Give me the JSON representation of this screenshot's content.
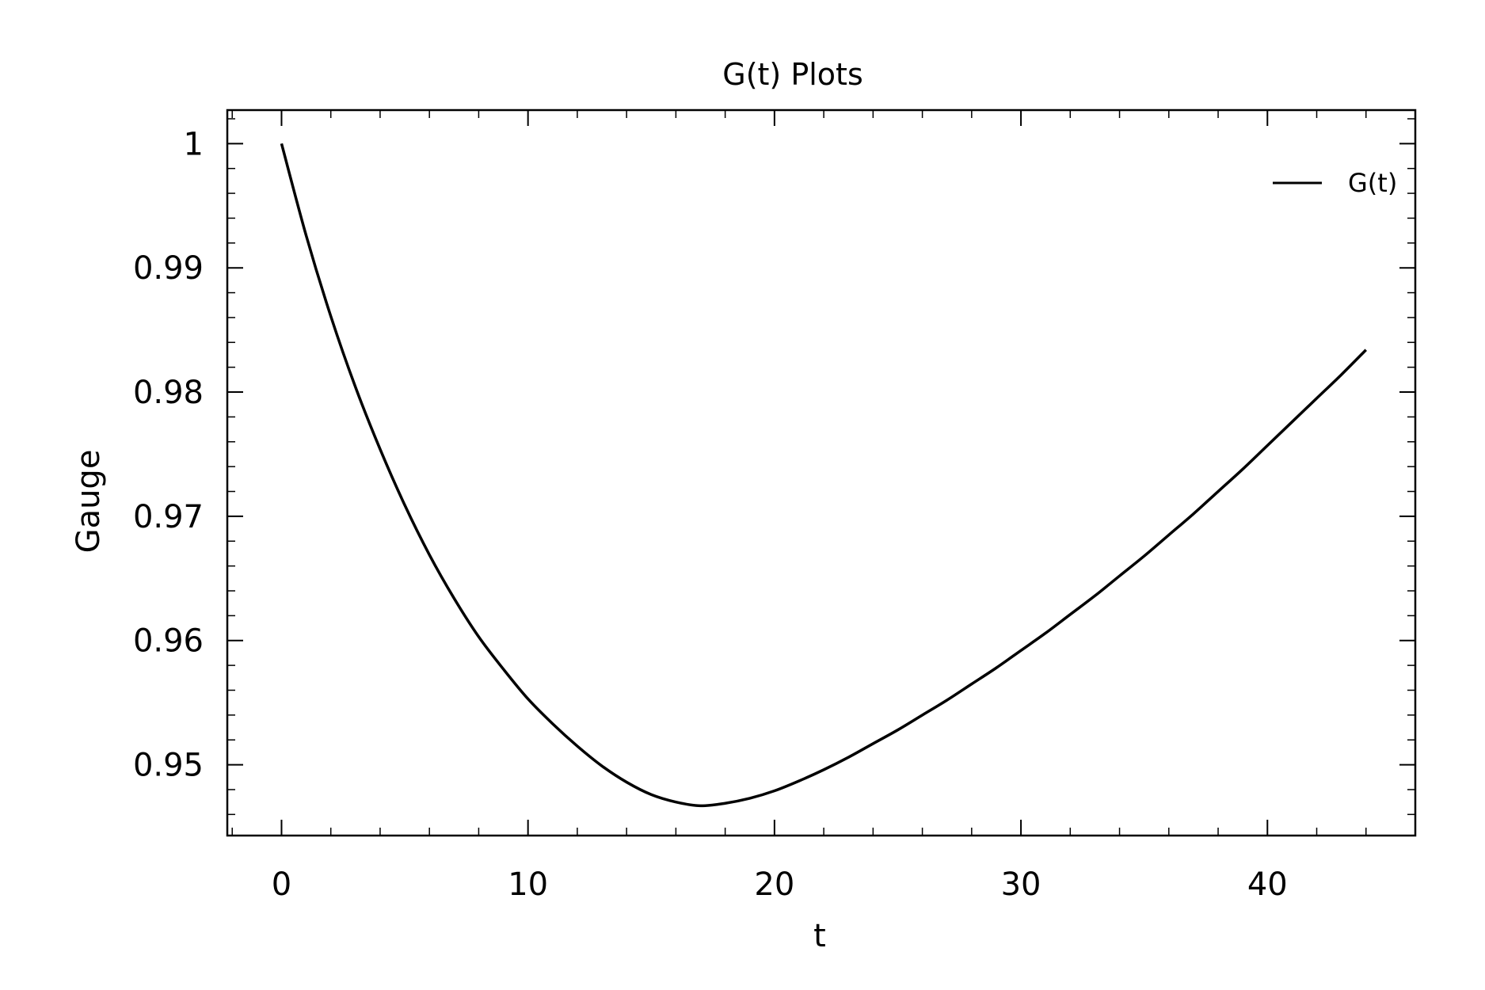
{
  "chart_data": {
    "type": "line",
    "title": "G(t) Plots",
    "xlabel": "t",
    "ylabel": "Gauge",
    "xlim": [
      -2.2,
      46.0
    ],
    "ylim": [
      0.9443,
      1.0027
    ],
    "xticks": [
      0,
      10,
      20,
      30,
      40
    ],
    "xtick_labels": [
      "0",
      "10",
      "20",
      "30",
      "40"
    ],
    "yticks": [
      0.95,
      0.96,
      0.97,
      0.98,
      0.99,
      1.0
    ],
    "ytick_labels": [
      "0.95",
      "0.96",
      "0.97",
      "0.98",
      "0.99",
      "1"
    ],
    "x_minor_step": 2,
    "y_minor_step": 0.002,
    "grid": false,
    "legend_position": "top-right",
    "series": [
      {
        "name": "G(t)",
        "color": "#000000",
        "x": [
          0,
          1,
          2,
          3,
          4,
          5,
          6,
          7,
          8,
          9,
          10,
          11,
          12,
          13,
          14,
          15,
          16,
          17,
          18,
          19,
          20,
          21,
          22,
          23,
          24,
          25,
          26,
          27,
          28,
          29,
          30,
          31,
          32,
          33,
          34,
          35,
          36,
          37,
          38,
          39,
          40,
          41,
          42,
          43,
          44
        ],
        "y": [
          1.0,
          0.9926,
          0.9861,
          0.9804,
          0.9754,
          0.9709,
          0.9669,
          0.9634,
          0.9603,
          0.9577,
          0.9553,
          0.9533,
          0.9515,
          0.9499,
          0.9486,
          0.9476,
          0.947,
          0.9467,
          0.9469,
          0.9473,
          0.9479,
          0.9487,
          0.9496,
          0.9506,
          0.9517,
          0.9528,
          0.954,
          0.9552,
          0.9565,
          0.9578,
          0.9592,
          0.9606,
          0.9621,
          0.9636,
          0.9652,
          0.9668,
          0.9685,
          0.9702,
          0.972,
          0.9738,
          0.9757,
          0.9776,
          0.9795,
          0.9814,
          0.9834
        ]
      }
    ]
  }
}
